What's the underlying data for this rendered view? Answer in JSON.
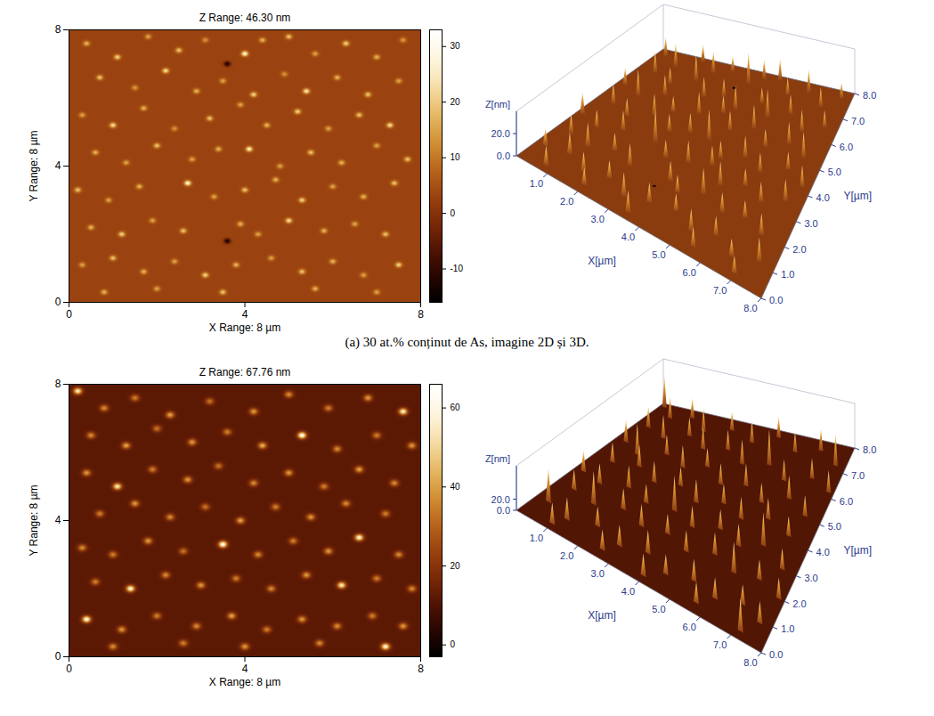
{
  "chart_data": [
    {
      "type": "afm",
      "caption": "(a) 30 at.% conținut de As, imagine 2D și 3D.",
      "background": 3,
      "particles": [
        [
          0.4,
          7.6,
          18
        ],
        [
          1.1,
          7.2,
          22
        ],
        [
          1.8,
          7.8,
          16
        ],
        [
          2.5,
          7.4,
          20
        ],
        [
          3.1,
          7.7,
          14
        ],
        [
          4.0,
          7.3,
          30
        ],
        [
          4.4,
          7.7,
          18
        ],
        [
          5.0,
          7.8,
          20
        ],
        [
          5.6,
          7.3,
          16
        ],
        [
          6.3,
          7.6,
          22
        ],
        [
          7.0,
          7.2,
          18
        ],
        [
          7.6,
          7.7,
          15
        ],
        [
          0.7,
          6.6,
          20
        ],
        [
          1.5,
          6.3,
          15
        ],
        [
          2.2,
          6.8,
          24
        ],
        [
          2.9,
          6.2,
          18
        ],
        [
          3.5,
          6.5,
          16
        ],
        [
          4.2,
          6.1,
          22
        ],
        [
          4.9,
          6.7,
          14
        ],
        [
          5.4,
          6.2,
          26
        ],
        [
          6.1,
          6.6,
          18
        ],
        [
          6.8,
          6.1,
          20
        ],
        [
          7.5,
          6.5,
          16
        ],
        [
          0.3,
          5.5,
          16
        ],
        [
          1.0,
          5.2,
          24
        ],
        [
          1.7,
          5.7,
          18
        ],
        [
          2.4,
          5.1,
          14
        ],
        [
          3.2,
          5.4,
          20
        ],
        [
          3.9,
          5.8,
          16
        ],
        [
          4.5,
          5.2,
          18
        ],
        [
          5.2,
          5.6,
          22
        ],
        [
          5.9,
          5.1,
          16
        ],
        [
          6.6,
          5.5,
          20
        ],
        [
          7.3,
          5.2,
          24
        ],
        [
          0.6,
          4.4,
          18
        ],
        [
          1.3,
          4.1,
          16
        ],
        [
          2.0,
          4.6,
          20
        ],
        [
          2.8,
          4.2,
          16
        ],
        [
          3.4,
          4.5,
          18
        ],
        [
          4.1,
          4.5,
          28
        ],
        [
          4.8,
          4.0,
          16
        ],
        [
          5.5,
          4.4,
          20
        ],
        [
          6.2,
          4.1,
          18
        ],
        [
          7.0,
          4.6,
          16
        ],
        [
          7.7,
          4.2,
          20
        ],
        [
          0.2,
          3.3,
          20
        ],
        [
          0.9,
          3.0,
          16
        ],
        [
          1.6,
          3.4,
          18
        ],
        [
          2.7,
          3.5,
          30
        ],
        [
          3.3,
          3.1,
          16
        ],
        [
          4.0,
          3.3,
          20
        ],
        [
          4.7,
          3.6,
          18
        ],
        [
          5.3,
          3.0,
          22
        ],
        [
          6.0,
          3.4,
          16
        ],
        [
          6.7,
          3.1,
          18
        ],
        [
          7.4,
          3.5,
          20
        ],
        [
          0.5,
          2.2,
          18
        ],
        [
          1.2,
          2.0,
          22
        ],
        [
          1.9,
          2.4,
          16
        ],
        [
          2.6,
          2.1,
          20
        ],
        [
          3.9,
          2.3,
          18
        ],
        [
          4.3,
          2.0,
          16
        ],
        [
          5.0,
          2.4,
          24
        ],
        [
          5.8,
          2.1,
          18
        ],
        [
          6.5,
          2.3,
          16
        ],
        [
          7.2,
          2.0,
          20
        ],
        [
          0.3,
          1.1,
          16
        ],
        [
          1.0,
          1.3,
          20
        ],
        [
          1.7,
          0.9,
          18
        ],
        [
          2.4,
          1.2,
          16
        ],
        [
          3.1,
          0.8,
          22
        ],
        [
          3.8,
          1.1,
          18
        ],
        [
          4.6,
          1.3,
          16
        ],
        [
          5.3,
          0.9,
          20
        ],
        [
          6.0,
          1.2,
          18
        ],
        [
          6.7,
          0.8,
          16
        ],
        [
          7.5,
          1.1,
          22
        ],
        [
          0.8,
          0.3,
          18
        ],
        [
          2.0,
          0.4,
          16
        ],
        [
          3.5,
          0.3,
          20
        ],
        [
          5.6,
          0.4,
          18
        ],
        [
          7.0,
          0.3,
          16
        ],
        [
          3.6,
          7.0,
          -14
        ],
        [
          3.6,
          1.8,
          -14
        ]
      ],
      "image": {
        "title": "Z Range: 46.30 nm",
        "x_label": "X Range: 8 µm",
        "y_label": "Y Range: 8 µm",
        "xlim": [
          0,
          8
        ],
        "ylim": [
          0,
          8
        ],
        "xticks": [
          0,
          4,
          8
        ],
        "yticks": [
          0,
          4,
          8
        ],
        "colors": [
          "#000000",
          "#3a0800",
          "#7a2808",
          "#a84c12",
          "#d08a2a",
          "#ecc470",
          "#fff4d8",
          "#ffffff"
        ],
        "colorbar": {
          "range": [
            -16,
            33
          ],
          "ticks": [
            -10,
            0,
            10,
            20,
            30
          ]
        }
      },
      "surface": {
        "x_label": "X[µm]",
        "y_label": "Y[µm]",
        "z_label": "Z[nm]",
        "xlim": [
          0,
          8
        ],
        "ylim": [
          0,
          8
        ],
        "zlim": [
          0,
          40
        ],
        "xticks": [
          {
            "value": 1,
            "label": "1.0"
          },
          {
            "value": 2,
            "label": "2.0"
          },
          {
            "value": 3,
            "label": "3.0"
          },
          {
            "value": 4,
            "label": "4.0"
          },
          {
            "value": 5,
            "label": "5.0"
          },
          {
            "value": 6,
            "label": "6.0"
          },
          {
            "value": 7,
            "label": "7.0"
          },
          {
            "value": 8,
            "label": "8.0"
          }
        ],
        "yticks": [
          {
            "value": 0,
            "label": "0.0"
          },
          {
            "value": 1,
            "label": "1.0"
          },
          {
            "value": 2,
            "label": "2.0"
          },
          {
            "value": 3,
            "label": "3.0"
          },
          {
            "value": 4,
            "label": "4.0"
          },
          {
            "value": 5,
            "label": "5.0"
          },
          {
            "value": 6,
            "label": "6.0"
          },
          {
            "value": 7,
            "label": "7.0"
          },
          {
            "value": 8,
            "label": "8.0"
          }
        ],
        "zticks": [
          {
            "value": 0,
            "label": "0.0"
          },
          {
            "value": 20,
            "label": "20.0"
          }
        ]
      }
    },
    {
      "type": "afm",
      "background": 12,
      "particles": [
        [
          0.2,
          7.8,
          56
        ],
        [
          0.8,
          7.3,
          38
        ],
        [
          1.5,
          7.6,
          36
        ],
        [
          2.3,
          7.1,
          42
        ],
        [
          3.2,
          7.5,
          34
        ],
        [
          4.2,
          7.2,
          40
        ],
        [
          5.0,
          7.7,
          38
        ],
        [
          5.9,
          7.3,
          36
        ],
        [
          6.8,
          7.6,
          40
        ],
        [
          7.6,
          7.2,
          58
        ],
        [
          0.5,
          6.5,
          38
        ],
        [
          1.3,
          6.2,
          42
        ],
        [
          2.0,
          6.7,
          34
        ],
        [
          2.8,
          6.3,
          40
        ],
        [
          3.6,
          6.6,
          36
        ],
        [
          4.4,
          6.2,
          44
        ],
        [
          5.3,
          6.5,
          64
        ],
        [
          6.1,
          6.1,
          38
        ],
        [
          7.0,
          6.5,
          36
        ],
        [
          7.8,
          6.2,
          40
        ],
        [
          0.4,
          5.4,
          40
        ],
        [
          1.1,
          5.0,
          56
        ],
        [
          1.9,
          5.5,
          36
        ],
        [
          2.7,
          5.2,
          40
        ],
        [
          3.4,
          5.6,
          34
        ],
        [
          4.2,
          5.1,
          38
        ],
        [
          5.0,
          5.4,
          40
        ],
        [
          5.8,
          5.0,
          36
        ],
        [
          6.6,
          5.5,
          42
        ],
        [
          7.4,
          5.1,
          38
        ],
        [
          0.7,
          4.2,
          36
        ],
        [
          1.5,
          4.5,
          40
        ],
        [
          2.3,
          4.1,
          38
        ],
        [
          3.1,
          4.4,
          34
        ],
        [
          3.9,
          4.0,
          42
        ],
        [
          4.7,
          4.4,
          36
        ],
        [
          5.5,
          4.1,
          40
        ],
        [
          6.3,
          4.5,
          38
        ],
        [
          7.2,
          4.2,
          36
        ],
        [
          0.3,
          3.2,
          38
        ],
        [
          1.0,
          3.0,
          36
        ],
        [
          1.8,
          3.4,
          40
        ],
        [
          2.6,
          3.1,
          34
        ],
        [
          3.5,
          3.3,
          64
        ],
        [
          4.3,
          3.0,
          38
        ],
        [
          5.1,
          3.4,
          36
        ],
        [
          5.9,
          3.1,
          40
        ],
        [
          6.6,
          3.5,
          60
        ],
        [
          7.5,
          3.0,
          38
        ],
        [
          0.6,
          2.2,
          36
        ],
        [
          1.4,
          2.0,
          60
        ],
        [
          2.2,
          2.4,
          38
        ],
        [
          3.0,
          2.1,
          40
        ],
        [
          3.8,
          2.3,
          36
        ],
        [
          4.6,
          2.0,
          38
        ],
        [
          5.4,
          2.4,
          40
        ],
        [
          6.2,
          2.1,
          56
        ],
        [
          7.0,
          2.3,
          36
        ],
        [
          7.8,
          2.0,
          38
        ],
        [
          0.4,
          1.1,
          62
        ],
        [
          1.2,
          0.8,
          40
        ],
        [
          2.0,
          1.2,
          36
        ],
        [
          2.9,
          0.9,
          38
        ],
        [
          3.7,
          1.2,
          42
        ],
        [
          4.5,
          0.8,
          36
        ],
        [
          5.3,
          1.1,
          40
        ],
        [
          6.1,
          0.9,
          38
        ],
        [
          6.9,
          1.2,
          36
        ],
        [
          7.6,
          0.9,
          40
        ],
        [
          1.0,
          0.3,
          38
        ],
        [
          2.6,
          0.4,
          36
        ],
        [
          4.0,
          0.3,
          40
        ],
        [
          5.7,
          0.4,
          38
        ],
        [
          7.2,
          0.3,
          60
        ]
      ],
      "image": {
        "title": "Z Range: 67.76 nm",
        "x_label": "X Range: 8 µm",
        "y_label": "Y Range: 8 µm",
        "xlim": [
          0,
          8
        ],
        "ylim": [
          0,
          8
        ],
        "xticks": [
          0,
          4,
          8
        ],
        "yticks": [
          0,
          4,
          8
        ],
        "colors": [
          "#000000",
          "#3a0800",
          "#7a2808",
          "#a84c12",
          "#d08a2a",
          "#ecc470",
          "#fff4d8",
          "#ffffff"
        ],
        "colorbar": {
          "range": [
            -3,
            66
          ],
          "ticks": [
            0,
            20,
            40,
            60
          ]
        }
      },
      "surface": {
        "x_label": "X[µm]",
        "y_label": "Y[µm]",
        "z_label": "Z[nm]",
        "xlim": [
          0,
          8
        ],
        "ylim": [
          0,
          8
        ],
        "zlim": [
          0,
          80
        ],
        "xticks": [
          {
            "value": 1,
            "label": "1.0"
          },
          {
            "value": 2,
            "label": "2.0"
          },
          {
            "value": 3,
            "label": "3.0"
          },
          {
            "value": 4,
            "label": "4.0"
          },
          {
            "value": 5,
            "label": "5.0"
          },
          {
            "value": 6,
            "label": "6.0"
          },
          {
            "value": 7,
            "label": "7.0"
          },
          {
            "value": 8,
            "label": "8.0"
          }
        ],
        "yticks": [
          {
            "value": 0,
            "label": "0.0"
          },
          {
            "value": 1,
            "label": "1.0"
          },
          {
            "value": 2,
            "label": "2.0"
          },
          {
            "value": 3,
            "label": "3.0"
          },
          {
            "value": 4,
            "label": "4.0"
          },
          {
            "value": 5,
            "label": "5.0"
          },
          {
            "value": 6,
            "label": "6.0"
          },
          {
            "value": 7,
            "label": "7.0"
          },
          {
            "value": 8,
            "label": "8.0"
          }
        ],
        "zticks": [
          {
            "value": 0,
            "label": "0.0"
          },
          {
            "value": 20,
            "label": "20.0"
          }
        ]
      }
    }
  ]
}
